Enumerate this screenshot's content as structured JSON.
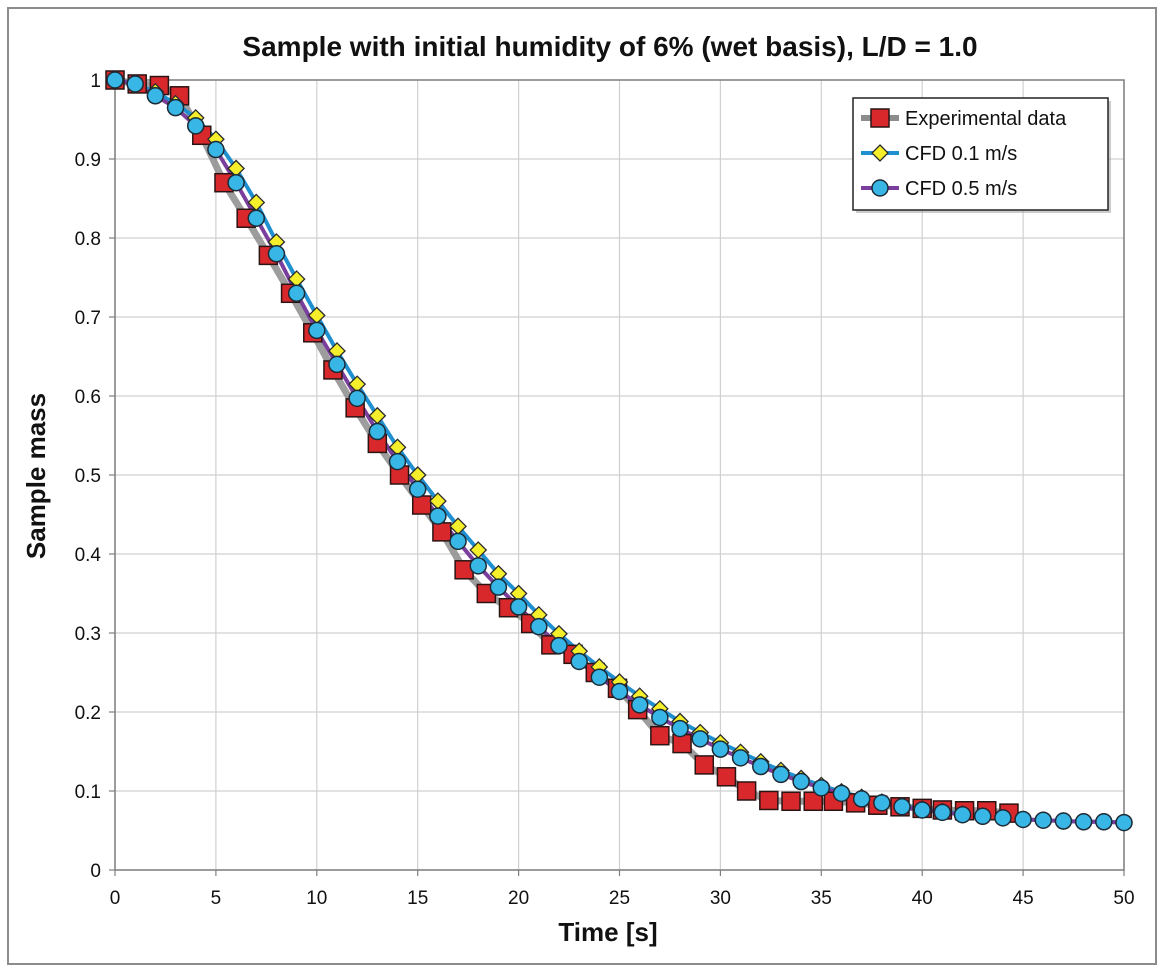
{
  "chart_data": {
    "type": "line",
    "title": "Sample with initial humidity of 6% (wet basis), L/D = 1.0",
    "xlabel": "Time [s]",
    "ylabel": "Sample mass",
    "xlim": [
      0,
      50
    ],
    "ylim": [
      0,
      1
    ],
    "xticks": [
      "0",
      "5",
      "10",
      "15",
      "20",
      "25",
      "30",
      "35",
      "40",
      "45",
      "50"
    ],
    "yticks": [
      "0",
      "0.1",
      "0.2",
      "0.3",
      "0.4",
      "0.5",
      "0.6",
      "0.7",
      "0.8",
      "0.9",
      "1"
    ],
    "grid": true,
    "legend_position": "top-right",
    "series": [
      {
        "name": "Experimental data",
        "marker": "square",
        "line_color": "#8c8c8c",
        "marker_color": "#d8282b",
        "x": [
          0,
          1.1,
          2.2,
          3.2,
          4.3,
          5.4,
          6.5,
          7.6,
          8.7,
          9.8,
          10.8,
          11.9,
          13,
          14.1,
          15.2,
          16.2,
          17.3,
          18.4,
          19.5,
          20.6,
          21.6,
          22.7,
          23.8,
          24.9,
          25.9,
          27,
          28.1,
          29.2,
          30.3,
          31.3,
          32.4,
          33.5,
          34.6,
          35.6,
          36.7,
          37.8,
          38.9,
          40,
          41,
          42.1,
          43.2,
          44.3
        ],
        "y": [
          1.0,
          0.995,
          0.993,
          0.98,
          0.93,
          0.87,
          0.825,
          0.778,
          0.73,
          0.68,
          0.633,
          0.585,
          0.54,
          0.5,
          0.462,
          0.428,
          0.38,
          0.35,
          0.332,
          0.312,
          0.285,
          0.273,
          0.25,
          0.23,
          0.203,
          0.17,
          0.16,
          0.133,
          0.118,
          0.1,
          0.088,
          0.087,
          0.087,
          0.087,
          0.085,
          0.082,
          0.08,
          0.078,
          0.076,
          0.075,
          0.075,
          0.072
        ]
      },
      {
        "name": "CFD 0.1 m/s",
        "marker": "diamond",
        "line_color": "#1f8fd0",
        "marker_color": "#f5ee2a",
        "x": [
          0,
          1,
          2,
          3,
          4,
          5,
          6,
          7,
          8,
          9,
          10,
          11,
          12,
          13,
          14,
          15,
          16,
          17,
          18,
          19,
          20,
          21,
          22,
          23,
          24,
          25,
          26,
          27,
          28,
          29,
          30,
          31,
          32,
          33,
          34,
          35,
          36,
          37,
          38,
          39,
          40,
          41,
          42,
          43,
          44,
          45,
          46,
          47,
          48,
          49,
          50
        ],
        "y": [
          1.0,
          0.995,
          0.985,
          0.97,
          0.952,
          0.925,
          0.888,
          0.845,
          0.795,
          0.748,
          0.702,
          0.657,
          0.615,
          0.575,
          0.535,
          0.5,
          0.467,
          0.435,
          0.405,
          0.375,
          0.35,
          0.323,
          0.299,
          0.277,
          0.257,
          0.238,
          0.22,
          0.204,
          0.188,
          0.174,
          0.161,
          0.149,
          0.137,
          0.126,
          0.116,
          0.107,
          0.099,
          0.092,
          0.086,
          0.081,
          0.077,
          0.074,
          0.071,
          0.068,
          0.066,
          0.064,
          0.063,
          0.062,
          0.061,
          0.061,
          0.06
        ]
      },
      {
        "name": "CFD 0.5 m/s",
        "marker": "circle",
        "line_color": "#7a3e9d",
        "marker_color": "#38b6e6",
        "x": [
          0,
          1,
          2,
          3,
          4,
          5,
          6,
          7,
          8,
          9,
          10,
          11,
          12,
          13,
          14,
          15,
          16,
          17,
          18,
          19,
          20,
          21,
          22,
          23,
          24,
          25,
          26,
          27,
          28,
          29,
          30,
          31,
          32,
          33,
          34,
          35,
          36,
          37,
          38,
          39,
          40,
          41,
          42,
          43,
          44,
          45,
          46,
          47,
          48,
          49,
          50
        ],
        "y": [
          1.0,
          0.995,
          0.98,
          0.965,
          0.942,
          0.912,
          0.87,
          0.825,
          0.78,
          0.73,
          0.683,
          0.64,
          0.597,
          0.555,
          0.517,
          0.482,
          0.448,
          0.416,
          0.385,
          0.358,
          0.333,
          0.308,
          0.284,
          0.264,
          0.244,
          0.226,
          0.209,
          0.193,
          0.179,
          0.166,
          0.153,
          0.142,
          0.131,
          0.121,
          0.112,
          0.104,
          0.097,
          0.09,
          0.085,
          0.08,
          0.076,
          0.073,
          0.07,
          0.068,
          0.066,
          0.064,
          0.063,
          0.062,
          0.061,
          0.061,
          0.06
        ]
      }
    ]
  }
}
